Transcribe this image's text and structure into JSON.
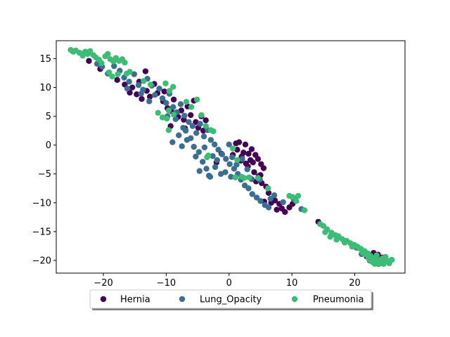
{
  "chart_data": {
    "type": "scatter",
    "title": "",
    "xlabel": "",
    "ylabel": "",
    "xlim": [
      -27.5,
      28.0
    ],
    "ylim": [
      -22.2,
      18.1
    ],
    "xticks": [
      -20,
      -10,
      0,
      10,
      20
    ],
    "yticks": [
      -20,
      -15,
      -10,
      -5,
      0,
      5,
      10,
      15
    ],
    "grid": false,
    "legend": {
      "placement": "bottom-center",
      "columns": 3
    },
    "series": [
      {
        "name": "Hernia",
        "color": "#440154",
        "points": [
          [
            -22.3,
            14.6
          ],
          [
            -20.5,
            13.2
          ],
          [
            -17.8,
            11.3
          ],
          [
            -16.6,
            10.5
          ],
          [
            -15.8,
            9.1
          ],
          [
            -15.4,
            10.0
          ],
          [
            -14.7,
            8.8
          ],
          [
            -13.9,
            8.0
          ],
          [
            -13.1,
            9.4
          ],
          [
            -12.6,
            8.4
          ],
          [
            -14.3,
            11.0
          ],
          [
            -13.3,
            12.8
          ],
          [
            -11.4,
            9.0
          ],
          [
            -10.5,
            7.6
          ],
          [
            -9.8,
            6.4
          ],
          [
            -9.2,
            5.9
          ],
          [
            -8.8,
            7.9
          ],
          [
            -8.1,
            4.9
          ],
          [
            -7.6,
            6.0
          ],
          [
            -7.2,
            4.4
          ],
          [
            -6.6,
            6.7
          ],
          [
            -6.1,
            5.2
          ],
          [
            -5.6,
            7.7
          ],
          [
            -5.3,
            4.0
          ],
          [
            -4.9,
            3.0
          ],
          [
            -4.4,
            5.0
          ],
          [
            -4.1,
            2.5
          ],
          [
            -3.7,
            4.3
          ],
          [
            -9.3,
            3.3
          ],
          [
            -7.0,
            2.9
          ],
          [
            1.1,
            0.3
          ],
          [
            1.6,
            0.5
          ],
          [
            1.3,
            -0.8
          ],
          [
            2.3,
            -1.3
          ],
          [
            2.6,
            0.1
          ],
          [
            2.0,
            -2.0
          ],
          [
            3.1,
            -1.5
          ],
          [
            3.4,
            -2.6
          ],
          [
            2.7,
            -3.2
          ],
          [
            3.8,
            -3.0
          ],
          [
            4.2,
            -1.7
          ],
          [
            4.6,
            -2.4
          ],
          [
            5.1,
            -3.3
          ],
          [
            5.5,
            -4.0
          ],
          [
            4.0,
            -4.7
          ],
          [
            4.7,
            -5.4
          ],
          [
            5.2,
            -6.6
          ],
          [
            5.9,
            -7.2
          ],
          [
            6.3,
            -8.3
          ],
          [
            5.6,
            -9.8
          ],
          [
            6.7,
            -10.0
          ],
          [
            7.3,
            -9.6
          ],
          [
            8.0,
            -10.2
          ],
          [
            8.4,
            -11.0
          ],
          [
            8.9,
            -11.6
          ],
          [
            7.6,
            -11.2
          ],
          [
            9.6,
            -10.8
          ],
          [
            10.1,
            -10.2
          ],
          [
            14.2,
            -13.3
          ],
          [
            22.6,
            -19.2
          ],
          [
            23.0,
            -18.7
          ],
          [
            23.7,
            -19.0
          ],
          [
            24.4,
            -19.5
          ],
          [
            22.9,
            -20.3
          ],
          [
            23.8,
            -20.6
          ],
          [
            24.7,
            -20.1
          ],
          [
            23.3,
            -19.8
          ],
          [
            21.9,
            -19.3
          ],
          [
            24.0,
            -20.5
          ],
          [
            22.4,
            -20.0
          ],
          [
            1.9,
            -2.7
          ],
          [
            3.6,
            -0.7
          ],
          [
            0.6,
            -1.7
          ],
          [
            -1.2,
            -1.5
          ],
          [
            -2.0,
            -3.0
          ],
          [
            3.0,
            -3.7
          ],
          [
            5.0,
            -5.2
          ],
          [
            4.3,
            -6.3
          ],
          [
            -11.9,
            10.6
          ],
          [
            -10.3,
            9.3
          ]
        ]
      },
      {
        "name": "Lung_Opacity",
        "color": "#3b6f92",
        "points": [
          [
            -21.0,
            14.1
          ],
          [
            -20.2,
            13.6
          ],
          [
            -19.3,
            12.4
          ],
          [
            -18.3,
            13.7
          ],
          [
            -17.4,
            12.9
          ],
          [
            -16.7,
            11.7
          ],
          [
            -15.9,
            11.0
          ],
          [
            -15.1,
            12.3
          ],
          [
            -14.4,
            10.4
          ],
          [
            -13.7,
            9.6
          ],
          [
            -13.0,
            11.5
          ],
          [
            -12.3,
            10.3
          ],
          [
            -11.8,
            8.7
          ],
          [
            -11.1,
            9.8
          ],
          [
            -10.6,
            8.1
          ],
          [
            -10.0,
            7.3
          ],
          [
            -9.5,
            8.9
          ],
          [
            -8.9,
            6.6
          ],
          [
            -8.3,
            5.7
          ],
          [
            -7.7,
            7.1
          ],
          [
            -7.1,
            5.1
          ],
          [
            -6.4,
            4.0
          ],
          [
            -5.8,
            3.3
          ],
          [
            -5.2,
            2.1
          ],
          [
            -4.6,
            3.7
          ],
          [
            -4.0,
            1.5
          ],
          [
            -3.4,
            2.6
          ],
          [
            -2.9,
            0.9
          ],
          [
            -2.3,
            0.1
          ],
          [
            -1.7,
            -0.8
          ],
          [
            -1.1,
            -1.6
          ],
          [
            -0.5,
            -2.4
          ],
          [
            0.1,
            -3.3
          ],
          [
            0.8,
            -4.1
          ],
          [
            1.4,
            -5.0
          ],
          [
            1.9,
            -6.0
          ],
          [
            2.5,
            -7.0
          ],
          [
            3.1,
            -7.5
          ],
          [
            3.7,
            -8.5
          ],
          [
            4.4,
            -9.1
          ],
          [
            5.0,
            -9.7
          ],
          [
            5.7,
            -10.4
          ],
          [
            6.3,
            -10.8
          ],
          [
            -8.0,
            1.7
          ],
          [
            -6.7,
            0.9
          ],
          [
            -5.6,
            -0.3
          ],
          [
            -4.8,
            -1.2
          ],
          [
            -4.2,
            -2.9
          ],
          [
            -3.6,
            -4.1
          ],
          [
            -3.0,
            -5.5
          ],
          [
            -2.2,
            -3.8
          ],
          [
            -1.3,
            -5.0
          ],
          [
            -0.6,
            -4.7
          ],
          [
            0.5,
            -2.1
          ],
          [
            1.2,
            -3.4
          ],
          [
            -3.9,
            -0.4
          ],
          [
            -6.1,
            1.2
          ],
          [
            -7.5,
            -0.2
          ],
          [
            -9.0,
            0.5
          ],
          [
            -5.3,
            -2.0
          ],
          [
            2.1,
            -2.4
          ],
          [
            2.9,
            -4.2
          ],
          [
            3.6,
            -5.9
          ],
          [
            4.9,
            -6.0
          ],
          [
            6.6,
            -9.3
          ],
          [
            7.2,
            -8.7
          ],
          [
            8.6,
            -9.9
          ],
          [
            10.3,
            -9.4
          ],
          [
            11.5,
            -11.1
          ],
          [
            20.3,
            -17.8
          ],
          [
            21.4,
            -18.4
          ],
          [
            22.2,
            -19.0
          ],
          [
            23.1,
            -19.6
          ],
          [
            24.1,
            -19.9
          ],
          [
            24.6,
            -20.4
          ],
          [
            22.7,
            -20.1
          ],
          [
            21.1,
            -18.9
          ],
          [
            -12.7,
            7.6
          ],
          [
            -14.0,
            8.9
          ],
          [
            -16.2,
            9.8
          ],
          [
            -9.8,
            5.0
          ],
          [
            -8.5,
            4.5
          ],
          [
            -7.3,
            3.0
          ],
          [
            -6.9,
            2.5
          ],
          [
            -2.6,
            -1.9
          ],
          [
            -1.9,
            -2.6
          ],
          [
            0.0,
            0.1
          ],
          [
            0.3,
            -5.5
          ],
          [
            -4.7,
            -4.5
          ],
          [
            -3.2,
            -5.3
          ]
        ]
      },
      {
        "name": "Pneumonia",
        "color": "#3cbc75",
        "points": [
          [
            -25.2,
            16.5
          ],
          [
            -24.8,
            16.2
          ],
          [
            -24.4,
            16.4
          ],
          [
            -23.8,
            16.0
          ],
          [
            -23.3,
            15.5
          ],
          [
            -22.9,
            16.2
          ],
          [
            -22.5,
            15.8
          ],
          [
            -22.1,
            16.3
          ],
          [
            -21.6,
            15.6
          ],
          [
            -21.2,
            15.2
          ],
          [
            -20.7,
            14.8
          ],
          [
            -20.3,
            14.2
          ],
          [
            -19.7,
            15.4
          ],
          [
            -19.3,
            15.8
          ],
          [
            -18.9,
            14.9
          ],
          [
            -18.4,
            14.5
          ],
          [
            -18.0,
            15.1
          ],
          [
            -17.5,
            14.6
          ],
          [
            -17.0,
            14.9
          ],
          [
            -16.6,
            14.3
          ],
          [
            -19.1,
            12.6
          ],
          [
            -18.6,
            11.9
          ],
          [
            -17.7,
            12.3
          ],
          [
            -16.3,
            12.4
          ],
          [
            -15.8,
            12.7
          ],
          [
            -13.6,
            11.1
          ],
          [
            -12.5,
            10.5
          ],
          [
            -10.1,
            10.7
          ],
          [
            -9.5,
            9.4
          ],
          [
            -8.9,
            10.1
          ],
          [
            -9.6,
            6.0
          ],
          [
            -8.8,
            5.3
          ],
          [
            -9.9,
            4.6
          ],
          [
            -10.6,
            4.8
          ],
          [
            -11.3,
            5.6
          ],
          [
            -9.6,
            2.6
          ],
          [
            -6.8,
            7.5
          ],
          [
            -6.0,
            6.6
          ],
          [
            -5.1,
            7.9
          ],
          [
            -4.4,
            5.2
          ],
          [
            -3.7,
            3.3
          ],
          [
            -2.9,
            2.6
          ],
          [
            -2.5,
            2.4
          ],
          [
            -3.3,
            -1.8
          ],
          [
            -3.5,
            -2.1
          ],
          [
            0.6,
            -0.6
          ],
          [
            1.3,
            -2.6
          ],
          [
            2.0,
            -5.5
          ],
          [
            2.4,
            -5.7
          ],
          [
            1.0,
            -5.6
          ],
          [
            3.2,
            -5.6
          ],
          [
            4.6,
            -5.7
          ],
          [
            6.2,
            -7.5
          ],
          [
            9.6,
            -8.8
          ],
          [
            10.7,
            -9.7
          ],
          [
            10.1,
            -9.0
          ],
          [
            11.0,
            -8.8
          ],
          [
            12.0,
            -11.3
          ],
          [
            14.5,
            -13.7
          ],
          [
            15.0,
            -14.0
          ],
          [
            15.6,
            -14.6
          ],
          [
            16.3,
            -15.2
          ],
          [
            16.9,
            -15.6
          ],
          [
            17.4,
            -15.8
          ],
          [
            18.0,
            -16.3
          ],
          [
            18.7,
            -16.6
          ],
          [
            19.3,
            -17.0
          ],
          [
            19.9,
            -17.3
          ],
          [
            20.4,
            -17.6
          ],
          [
            21.0,
            -18.0
          ],
          [
            21.6,
            -18.4
          ],
          [
            22.1,
            -18.8
          ],
          [
            22.5,
            -19.2
          ],
          [
            22.9,
            -19.6
          ],
          [
            23.3,
            -20.0
          ],
          [
            23.7,
            -20.2
          ],
          [
            24.2,
            -19.8
          ],
          [
            24.7,
            -20.3
          ],
          [
            25.3,
            -20.1
          ],
          [
            25.9,
            -19.9
          ],
          [
            22.2,
            -19.6
          ],
          [
            23.0,
            -20.4
          ],
          [
            23.5,
            -19.1
          ],
          [
            24.5,
            -19.6
          ],
          [
            23.9,
            -20.6
          ],
          [
            22.7,
            -20.2
          ],
          [
            24.9,
            -19.4
          ],
          [
            21.3,
            -18.7
          ],
          [
            20.7,
            -17.9
          ],
          [
            25.5,
            -20.5
          ],
          [
            17.1,
            -16.4
          ],
          [
            18.4,
            -16.9
          ],
          [
            19.6,
            -17.6
          ],
          [
            16.1,
            -15.9
          ],
          [
            15.3,
            -15.1
          ],
          [
            23.2,
            -20.6
          ],
          [
            24.0,
            -20.0
          ],
          [
            22.4,
            -19.9
          ],
          [
            21.8,
            -19.0
          ],
          [
            24.6,
            -20.6
          ]
        ]
      }
    ]
  }
}
